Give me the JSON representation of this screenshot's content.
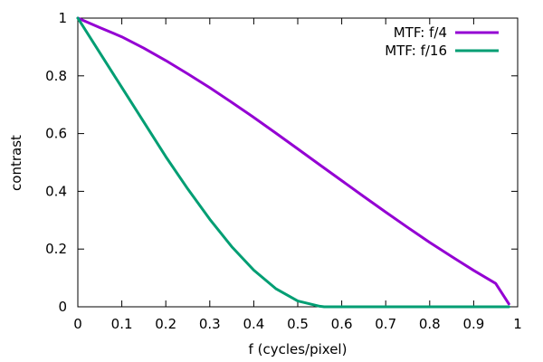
{
  "chart_data": {
    "type": "line",
    "xlabel": "f (cycles/pixel)",
    "ylabel": "contrast",
    "xlim": [
      0,
      1
    ],
    "ylim": [
      0,
      1
    ],
    "x_ticks": [
      "0",
      "0.1",
      "0.2",
      "0.3",
      "0.4",
      "0.5",
      "0.6",
      "0.7",
      "0.8",
      "0.9",
      "1"
    ],
    "y_ticks": [
      "0",
      "0.2",
      "0.4",
      "0.6",
      "0.8",
      "1"
    ],
    "grid": false,
    "legend_position": "top-right",
    "series": [
      {
        "name": "MTF: f/4",
        "color": "#9400d3",
        "x": [
          0,
          0.05,
          0.1,
          0.15,
          0.2,
          0.25,
          0.3,
          0.35,
          0.4,
          0.45,
          0.5,
          0.55,
          0.6,
          0.65,
          0.7,
          0.75,
          0.8,
          0.85,
          0.9,
          0.95,
          0.98
        ],
        "y": [
          1.0,
          0.967,
          0.935,
          0.896,
          0.853,
          0.807,
          0.759,
          0.708,
          0.656,
          0.602,
          0.547,
          0.492,
          0.437,
          0.382,
          0.328,
          0.275,
          0.223,
          0.174,
          0.126,
          0.081,
          0.01
        ]
      },
      {
        "name": "MTF: f/16",
        "color": "#009e73",
        "x": [
          0,
          0.05,
          0.1,
          0.15,
          0.2,
          0.25,
          0.3,
          0.35,
          0.4,
          0.45,
          0.5,
          0.55,
          0.56,
          0.6,
          0.7,
          0.8,
          0.9,
          0.98
        ],
        "y": [
          1.0,
          0.88,
          0.76,
          0.64,
          0.52,
          0.408,
          0.303,
          0.208,
          0.127,
          0.063,
          0.02,
          0.002,
          0.0,
          0.0,
          0.0,
          0.0,
          0.0,
          0.0
        ]
      }
    ]
  }
}
